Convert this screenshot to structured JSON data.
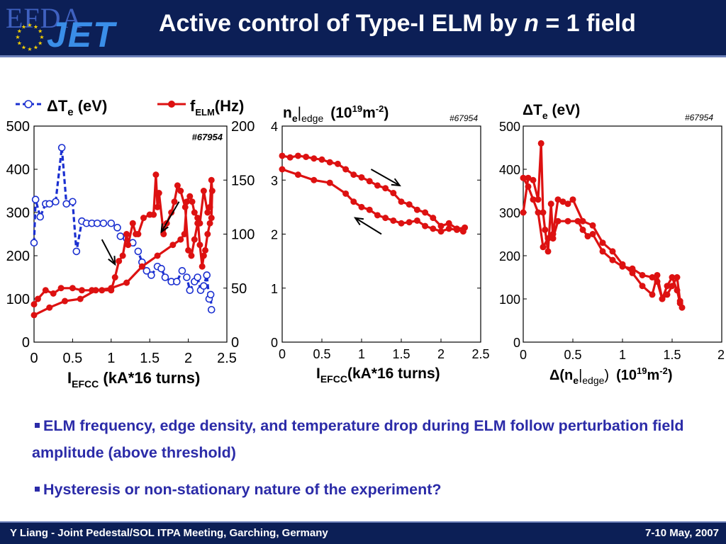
{
  "slide": {
    "logo_efda": "EFDA",
    "logo_jet": "JET",
    "title_pre": "Active control of Type-I ELM by ",
    "title_n": "n",
    "title_post": " = 1 field"
  },
  "bullets": [
    "ELM frequency, edge density, and temperature drop during ELM follow perturbation field amplitude (above threshold)",
    "Hysteresis or non-stationary nature of the experiment?"
  ],
  "footer": {
    "left": "Y Liang - Joint Pedestal/SOL ITPA Meeting, Garching, Germany",
    "right": "7-10 May, 2007"
  },
  "colors": {
    "header_bg": "#0c1f56",
    "bullet_text": "#2b2ba8",
    "series_blue": "#1a2fd0",
    "series_red": "#dd1111"
  },
  "chart_data": [
    {
      "type": "line",
      "shot_label": "#67954",
      "xlabel": {
        "main": "I",
        "sub": "EFCC",
        "rest": " (kA*16 turns)"
      },
      "xlim": [
        0,
        2.5
      ],
      "xticks": [
        "0",
        "0.5",
        "1",
        "1.5",
        "2",
        "2.5"
      ],
      "ylim_left": [
        0,
        500
      ],
      "yticks_left": [
        "0",
        "100",
        "200",
        "300",
        "400",
        "500"
      ],
      "ylim_right": [
        0,
        200
      ],
      "yticks_right": [
        "0",
        "50",
        "100",
        "150",
        "200"
      ],
      "legend": [
        {
          "symbol": "ΔT",
          "sub": "e",
          "unit": " (eV)",
          "marker": "open-circle-dashed"
        },
        {
          "symbol": "f",
          "sub": "ELM",
          "unit": "(Hz)",
          "marker": "filled-circle-solid"
        }
      ],
      "series": [
        {
          "name": "ΔTe (eV)",
          "axis": "left",
          "x": [
            0.0,
            0.02,
            0.08,
            0.15,
            0.2,
            0.28,
            0.36,
            0.42,
            0.5,
            0.55,
            0.62,
            0.68,
            0.75,
            0.82,
            0.9,
            1.0,
            1.08,
            1.12,
            1.2,
            1.28,
            1.35,
            1.4,
            1.46,
            1.52,
            1.6,
            1.65,
            1.7,
            1.78,
            1.85,
            1.92,
            1.98,
            2.02,
            2.08,
            2.12,
            2.16,
            2.2,
            2.24,
            2.27,
            2.29,
            2.3
          ],
          "y": [
            230,
            330,
            290,
            320,
            320,
            325,
            450,
            320,
            325,
            210,
            280,
            275,
            275,
            275,
            275,
            275,
            265,
            245,
            240,
            230,
            210,
            185,
            165,
            155,
            175,
            170,
            150,
            140,
            140,
            165,
            150,
            120,
            140,
            150,
            120,
            130,
            155,
            100,
            110,
            75
          ]
        },
        {
          "name": "fELM (Hz)",
          "axis": "right",
          "x": [
            0.0,
            0.05,
            0.15,
            0.25,
            0.35,
            0.5,
            0.62,
            0.75,
            0.88,
            1.0,
            1.05,
            1.1,
            1.15,
            1.2,
            1.22,
            1.28,
            1.32,
            1.35,
            1.42,
            1.5,
            1.55,
            1.58,
            1.6,
            1.62,
            1.68,
            1.72,
            1.78,
            1.82,
            1.86,
            1.9,
            1.96,
            2.0,
            2.04,
            2.08,
            2.12,
            2.15,
            2.2,
            2.25,
            2.28,
            2.3,
            2.31,
            2.3,
            2.28,
            2.25,
            2.22,
            2.2,
            2.18,
            2.15,
            2.12,
            2.08,
            2.05,
            2.02,
            1.98,
            1.95,
            1.9,
            1.8,
            1.6,
            1.4,
            1.2,
            1.0,
            0.8,
            0.6,
            0.4,
            0.2,
            0.0
          ],
          "y": [
            35,
            40,
            48,
            45,
            50,
            50,
            48,
            48,
            48,
            48,
            60,
            75,
            80,
            100,
            90,
            110,
            100,
            100,
            115,
            118,
            118,
            155,
            125,
            138,
            100,
            110,
            120,
            130,
            145,
            140,
            125,
            85,
            80,
            95,
            110,
            110,
            140,
            120,
            125,
            150,
            140,
            115,
            110,
            100,
            85,
            80,
            70,
            90,
            115,
            120,
            130,
            135,
            130,
            100,
            95,
            90,
            80,
            70,
            55,
            50,
            48,
            40,
            38,
            32,
            25
          ]
        }
      ],
      "arrows": [
        {
          "x1": 0.88,
          "y1": 95,
          "x2": 1.05,
          "y2": 72
        },
        {
          "x1": 1.88,
          "y1": 130,
          "x2": 1.65,
          "y2": 102
        }
      ]
    },
    {
      "type": "line",
      "shot_label": "#67954",
      "ylabel_top": {
        "main": "n",
        "sub": "e",
        "rest": "|",
        "sub2": "edge",
        "unit": "(10",
        "sup": "19",
        "unit2": "m",
        "sup2": "-2",
        "close": ")"
      },
      "xlabel": {
        "main": "I",
        "sub": "EFCC",
        "rest": "(kA*16 turns)"
      },
      "xlim": [
        0,
        2.5
      ],
      "xticks": [
        "0",
        "0.5",
        "1",
        "1.5",
        "2",
        "2.5"
      ],
      "ylim": [
        0,
        4
      ],
      "yticks": [
        "0",
        "1",
        "2",
        "3",
        "4"
      ],
      "series": [
        {
          "name": "ne|edge",
          "x": [
            0.0,
            0.1,
            0.2,
            0.3,
            0.4,
            0.5,
            0.6,
            0.7,
            0.8,
            0.9,
            1.0,
            1.1,
            1.2,
            1.3,
            1.4,
            1.5,
            1.6,
            1.7,
            1.8,
            1.9,
            2.0,
            2.1,
            2.2,
            2.3,
            2.28,
            2.2,
            2.1,
            2.0,
            1.9,
            1.8,
            1.7,
            1.6,
            1.5,
            1.4,
            1.3,
            1.2,
            1.1,
            1.0,
            0.9,
            0.8,
            0.6,
            0.4,
            0.2,
            0.0
          ],
          "y": [
            3.45,
            3.42,
            3.45,
            3.43,
            3.4,
            3.38,
            3.33,
            3.3,
            3.2,
            3.1,
            3.05,
            2.98,
            2.9,
            2.85,
            2.76,
            2.6,
            2.55,
            2.45,
            2.4,
            2.3,
            2.15,
            2.2,
            2.1,
            2.12,
            2.05,
            2.08,
            2.1,
            2.05,
            2.1,
            2.15,
            2.25,
            2.22,
            2.2,
            2.25,
            2.3,
            2.35,
            2.45,
            2.5,
            2.6,
            2.75,
            2.95,
            3.0,
            3.1,
            3.2
          ]
        }
      ],
      "arrows": [
        {
          "x1": 1.12,
          "y1": 3.2,
          "x2": 1.48,
          "y2": 2.9
        },
        {
          "x1": 1.25,
          "y1": 2.0,
          "x2": 0.92,
          "y2": 2.3
        }
      ]
    },
    {
      "type": "line",
      "shot_label": "#67954",
      "ylabel_top": {
        "main": "ΔT",
        "sub": "e",
        "rest": " (eV)"
      },
      "xlabel": {
        "main": "Δ(n",
        "sub": "e",
        "rest": "|",
        "sub2": "edge",
        "close": ")",
        "unit": "(10",
        "sup": "19",
        "unit2": "m",
        "sup2": "-2",
        "close2": ")"
      },
      "xlim": [
        0,
        2
      ],
      "xticks": [
        "0",
        "0.5",
        "1",
        "1.5",
        "2"
      ],
      "ylim": [
        0,
        500
      ],
      "yticks": [
        "0",
        "100",
        "200",
        "300",
        "400",
        "500"
      ],
      "series": [
        {
          "name": "ΔTe vs Δne",
          "x": [
            0.0,
            0.05,
            0.1,
            0.15,
            0.18,
            0.2,
            0.22,
            0.25,
            0.28,
            0.3,
            0.35,
            0.45,
            0.55,
            0.6,
            0.65,
            0.7,
            0.8,
            0.9,
            1.0,
            1.1,
            1.2,
            1.3,
            1.35,
            1.4,
            1.45,
            1.5,
            1.55,
            1.58,
            1.6,
            1.58,
            1.55,
            1.5,
            1.45,
            1.4,
            1.35,
            1.3,
            1.2,
            1.1,
            1.0,
            0.9,
            0.8,
            0.7,
            0.6,
            0.5,
            0.45,
            0.4,
            0.35,
            0.3,
            0.25,
            0.2,
            0.15,
            0.1,
            0.05,
            0.0
          ],
          "y": [
            300,
            380,
            375,
            330,
            460,
            300,
            260,
            210,
            320,
            240,
            280,
            280,
            280,
            260,
            245,
            250,
            210,
            190,
            175,
            170,
            155,
            150,
            140,
            100,
            130,
            150,
            120,
            90,
            80,
            95,
            150,
            130,
            110,
            100,
            155,
            110,
            130,
            160,
            180,
            210,
            230,
            270,
            280,
            330,
            320,
            325,
            330,
            250,
            240,
            220,
            300,
            330,
            360,
            380
          ]
        }
      ]
    }
  ]
}
